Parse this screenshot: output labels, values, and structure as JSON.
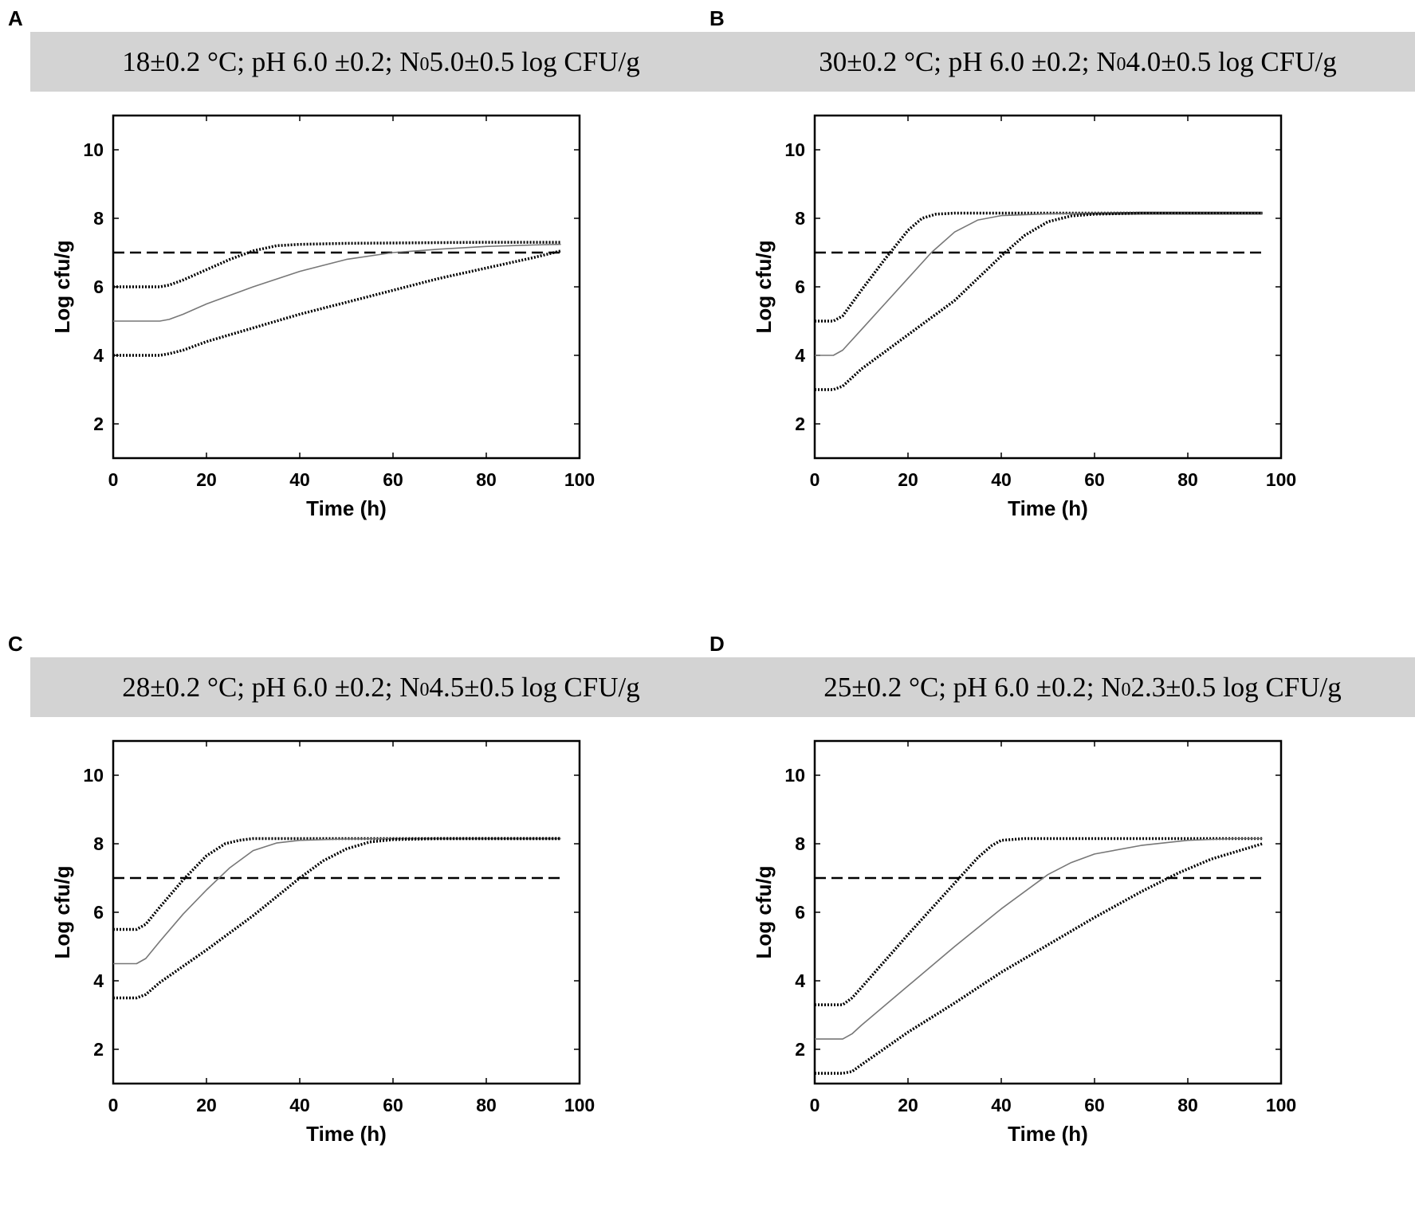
{
  "chart_data": [
    {
      "panel": "A",
      "type": "line",
      "title_parts": {
        "pre": "18±0.2 °C; pH 6.0 ±0.2; N",
        "sub": "0",
        "post": " 5.0±0.5 log CFU/g"
      },
      "xlabel": "Time (h)",
      "ylabel": "Log cfu/g",
      "xlim": [
        0,
        100
      ],
      "ylim": [
        1,
        11
      ],
      "xticks": [
        0,
        20,
        40,
        60,
        80,
        100
      ],
      "yticks": [
        2,
        4,
        6,
        8,
        10
      ],
      "threshold": 7.0,
      "threshold_end": 96,
      "series": [
        {
          "name": "upper",
          "style": "dotted",
          "color": "#000000",
          "x": [
            0,
            10,
            12,
            15,
            20,
            25,
            30,
            35,
            40,
            50,
            60,
            70,
            80,
            90,
            96
          ],
          "y": [
            6.0,
            6.0,
            6.05,
            6.2,
            6.5,
            6.8,
            7.05,
            7.2,
            7.24,
            7.27,
            7.28,
            7.29,
            7.3,
            7.3,
            7.3
          ]
        },
        {
          "name": "mean",
          "style": "solid",
          "color": "#777777",
          "x": [
            0,
            10,
            12,
            15,
            20,
            30,
            40,
            50,
            60,
            70,
            80,
            90,
            96
          ],
          "y": [
            5.0,
            5.0,
            5.05,
            5.2,
            5.5,
            6.0,
            6.45,
            6.8,
            7.0,
            7.1,
            7.18,
            7.22,
            7.24
          ]
        },
        {
          "name": "lower",
          "style": "dotted",
          "color": "#000000",
          "x": [
            0,
            10,
            12,
            15,
            20,
            30,
            40,
            50,
            60,
            70,
            80,
            90,
            96
          ],
          "y": [
            4.0,
            4.0,
            4.05,
            4.15,
            4.4,
            4.8,
            5.2,
            5.55,
            5.9,
            6.25,
            6.55,
            6.85,
            7.05
          ]
        }
      ]
    },
    {
      "panel": "B",
      "type": "line",
      "title_parts": {
        "pre": "30±0.2 °C; pH 6.0 ±0.2; N",
        "sub": "0",
        "post": " 4.0±0.5 log CFU/g"
      },
      "xlabel": "Time (h)",
      "ylabel": "Log cfu/g",
      "xlim": [
        0,
        100
      ],
      "ylim": [
        1,
        11
      ],
      "xticks": [
        0,
        20,
        40,
        60,
        80,
        100
      ],
      "yticks": [
        2,
        4,
        6,
        8,
        10
      ],
      "threshold": 7.0,
      "threshold_end": 96,
      "series": [
        {
          "name": "upper",
          "style": "dotted",
          "color": "#000000",
          "x": [
            0,
            4,
            6,
            10,
            15,
            20,
            23,
            26,
            30,
            40,
            60,
            96
          ],
          "y": [
            5.0,
            5.0,
            5.15,
            5.9,
            6.8,
            7.65,
            8.0,
            8.12,
            8.15,
            8.15,
            8.15,
            8.15
          ]
        },
        {
          "name": "mean",
          "style": "solid",
          "color": "#777777",
          "x": [
            0,
            4,
            6,
            10,
            15,
            20,
            25,
            30,
            35,
            40,
            50,
            60,
            96
          ],
          "y": [
            4.0,
            4.0,
            4.15,
            4.75,
            5.5,
            6.25,
            7.0,
            7.6,
            7.95,
            8.08,
            8.13,
            8.15,
            8.15
          ]
        },
        {
          "name": "lower",
          "style": "dotted",
          "color": "#000000",
          "x": [
            0,
            4,
            6,
            10,
            20,
            30,
            40,
            45,
            50,
            55,
            60,
            70,
            96
          ],
          "y": [
            3.0,
            3.0,
            3.1,
            3.6,
            4.6,
            5.6,
            6.9,
            7.5,
            7.9,
            8.07,
            8.12,
            8.15,
            8.15
          ]
        }
      ]
    },
    {
      "panel": "C",
      "type": "line",
      "title_parts": {
        "pre": "28±0.2 °C; pH 6.0 ±0.2; N",
        "sub": "0",
        "post": " 4.5±0.5 log CFU/g"
      },
      "xlabel": "Time (h)",
      "ylabel": "Log cfu/g",
      "xlim": [
        0,
        100
      ],
      "ylim": [
        1,
        11
      ],
      "xticks": [
        0,
        20,
        40,
        60,
        80,
        100
      ],
      "yticks": [
        2,
        4,
        6,
        8,
        10
      ],
      "threshold": 7.0,
      "threshold_end": 96,
      "series": [
        {
          "name": "upper",
          "style": "dotted",
          "color": "#000000",
          "x": [
            0,
            5,
            7,
            10,
            15,
            20,
            24,
            27,
            30,
            40,
            60,
            96
          ],
          "y": [
            5.5,
            5.5,
            5.65,
            6.15,
            6.95,
            7.65,
            8.0,
            8.1,
            8.15,
            8.15,
            8.15,
            8.15
          ]
        },
        {
          "name": "mean",
          "style": "solid",
          "color": "#777777",
          "x": [
            0,
            5,
            7,
            10,
            15,
            20,
            25,
            30,
            35,
            40,
            50,
            60,
            96
          ],
          "y": [
            4.5,
            4.5,
            4.65,
            5.15,
            5.95,
            6.65,
            7.3,
            7.8,
            8.02,
            8.1,
            8.14,
            8.15,
            8.15
          ]
        },
        {
          "name": "lower",
          "style": "dotted",
          "color": "#000000",
          "x": [
            0,
            5,
            7,
            10,
            20,
            30,
            40,
            45,
            50,
            55,
            60,
            70,
            96
          ],
          "y": [
            3.5,
            3.5,
            3.6,
            3.95,
            4.9,
            5.9,
            7.0,
            7.5,
            7.85,
            8.05,
            8.12,
            8.15,
            8.15
          ]
        }
      ]
    },
    {
      "panel": "D",
      "type": "line",
      "title_parts": {
        "pre": "25±0.2 °C; pH 6.0 ±0.2; N",
        "sub": "0",
        "post": " 2.3±0.5 log CFU/g"
      },
      "xlabel": "Time (h)",
      "ylabel": "Log cfu/g",
      "xlim": [
        0,
        100
      ],
      "ylim": [
        1,
        11
      ],
      "xticks": [
        0,
        20,
        40,
        60,
        80,
        100
      ],
      "yticks": [
        2,
        4,
        6,
        8,
        10
      ],
      "threshold": 7.0,
      "threshold_end": 96,
      "series": [
        {
          "name": "upper",
          "style": "dotted",
          "color": "#000000",
          "x": [
            0,
            6,
            8,
            10,
            20,
            30,
            35,
            38,
            40,
            45,
            50,
            60,
            96
          ],
          "y": [
            3.3,
            3.3,
            3.5,
            3.8,
            5.35,
            6.85,
            7.6,
            7.95,
            8.1,
            8.15,
            8.15,
            8.15,
            8.15
          ]
        },
        {
          "name": "mean",
          "style": "solid",
          "color": "#777777",
          "x": [
            0,
            6,
            8,
            10,
            20,
            30,
            40,
            50,
            55,
            60,
            70,
            80,
            90,
            96
          ],
          "y": [
            2.3,
            2.3,
            2.45,
            2.7,
            3.85,
            5.0,
            6.1,
            7.1,
            7.45,
            7.7,
            7.95,
            8.1,
            8.15,
            8.15
          ]
        },
        {
          "name": "lower",
          "style": "dotted",
          "color": "#000000",
          "x": [
            0,
            6,
            8,
            10,
            20,
            30,
            40,
            50,
            60,
            70,
            78,
            85,
            96
          ],
          "y": [
            1.3,
            1.3,
            1.35,
            1.55,
            2.5,
            3.35,
            4.25,
            5.05,
            5.85,
            6.6,
            7.15,
            7.55,
            8.0
          ]
        }
      ]
    }
  ]
}
